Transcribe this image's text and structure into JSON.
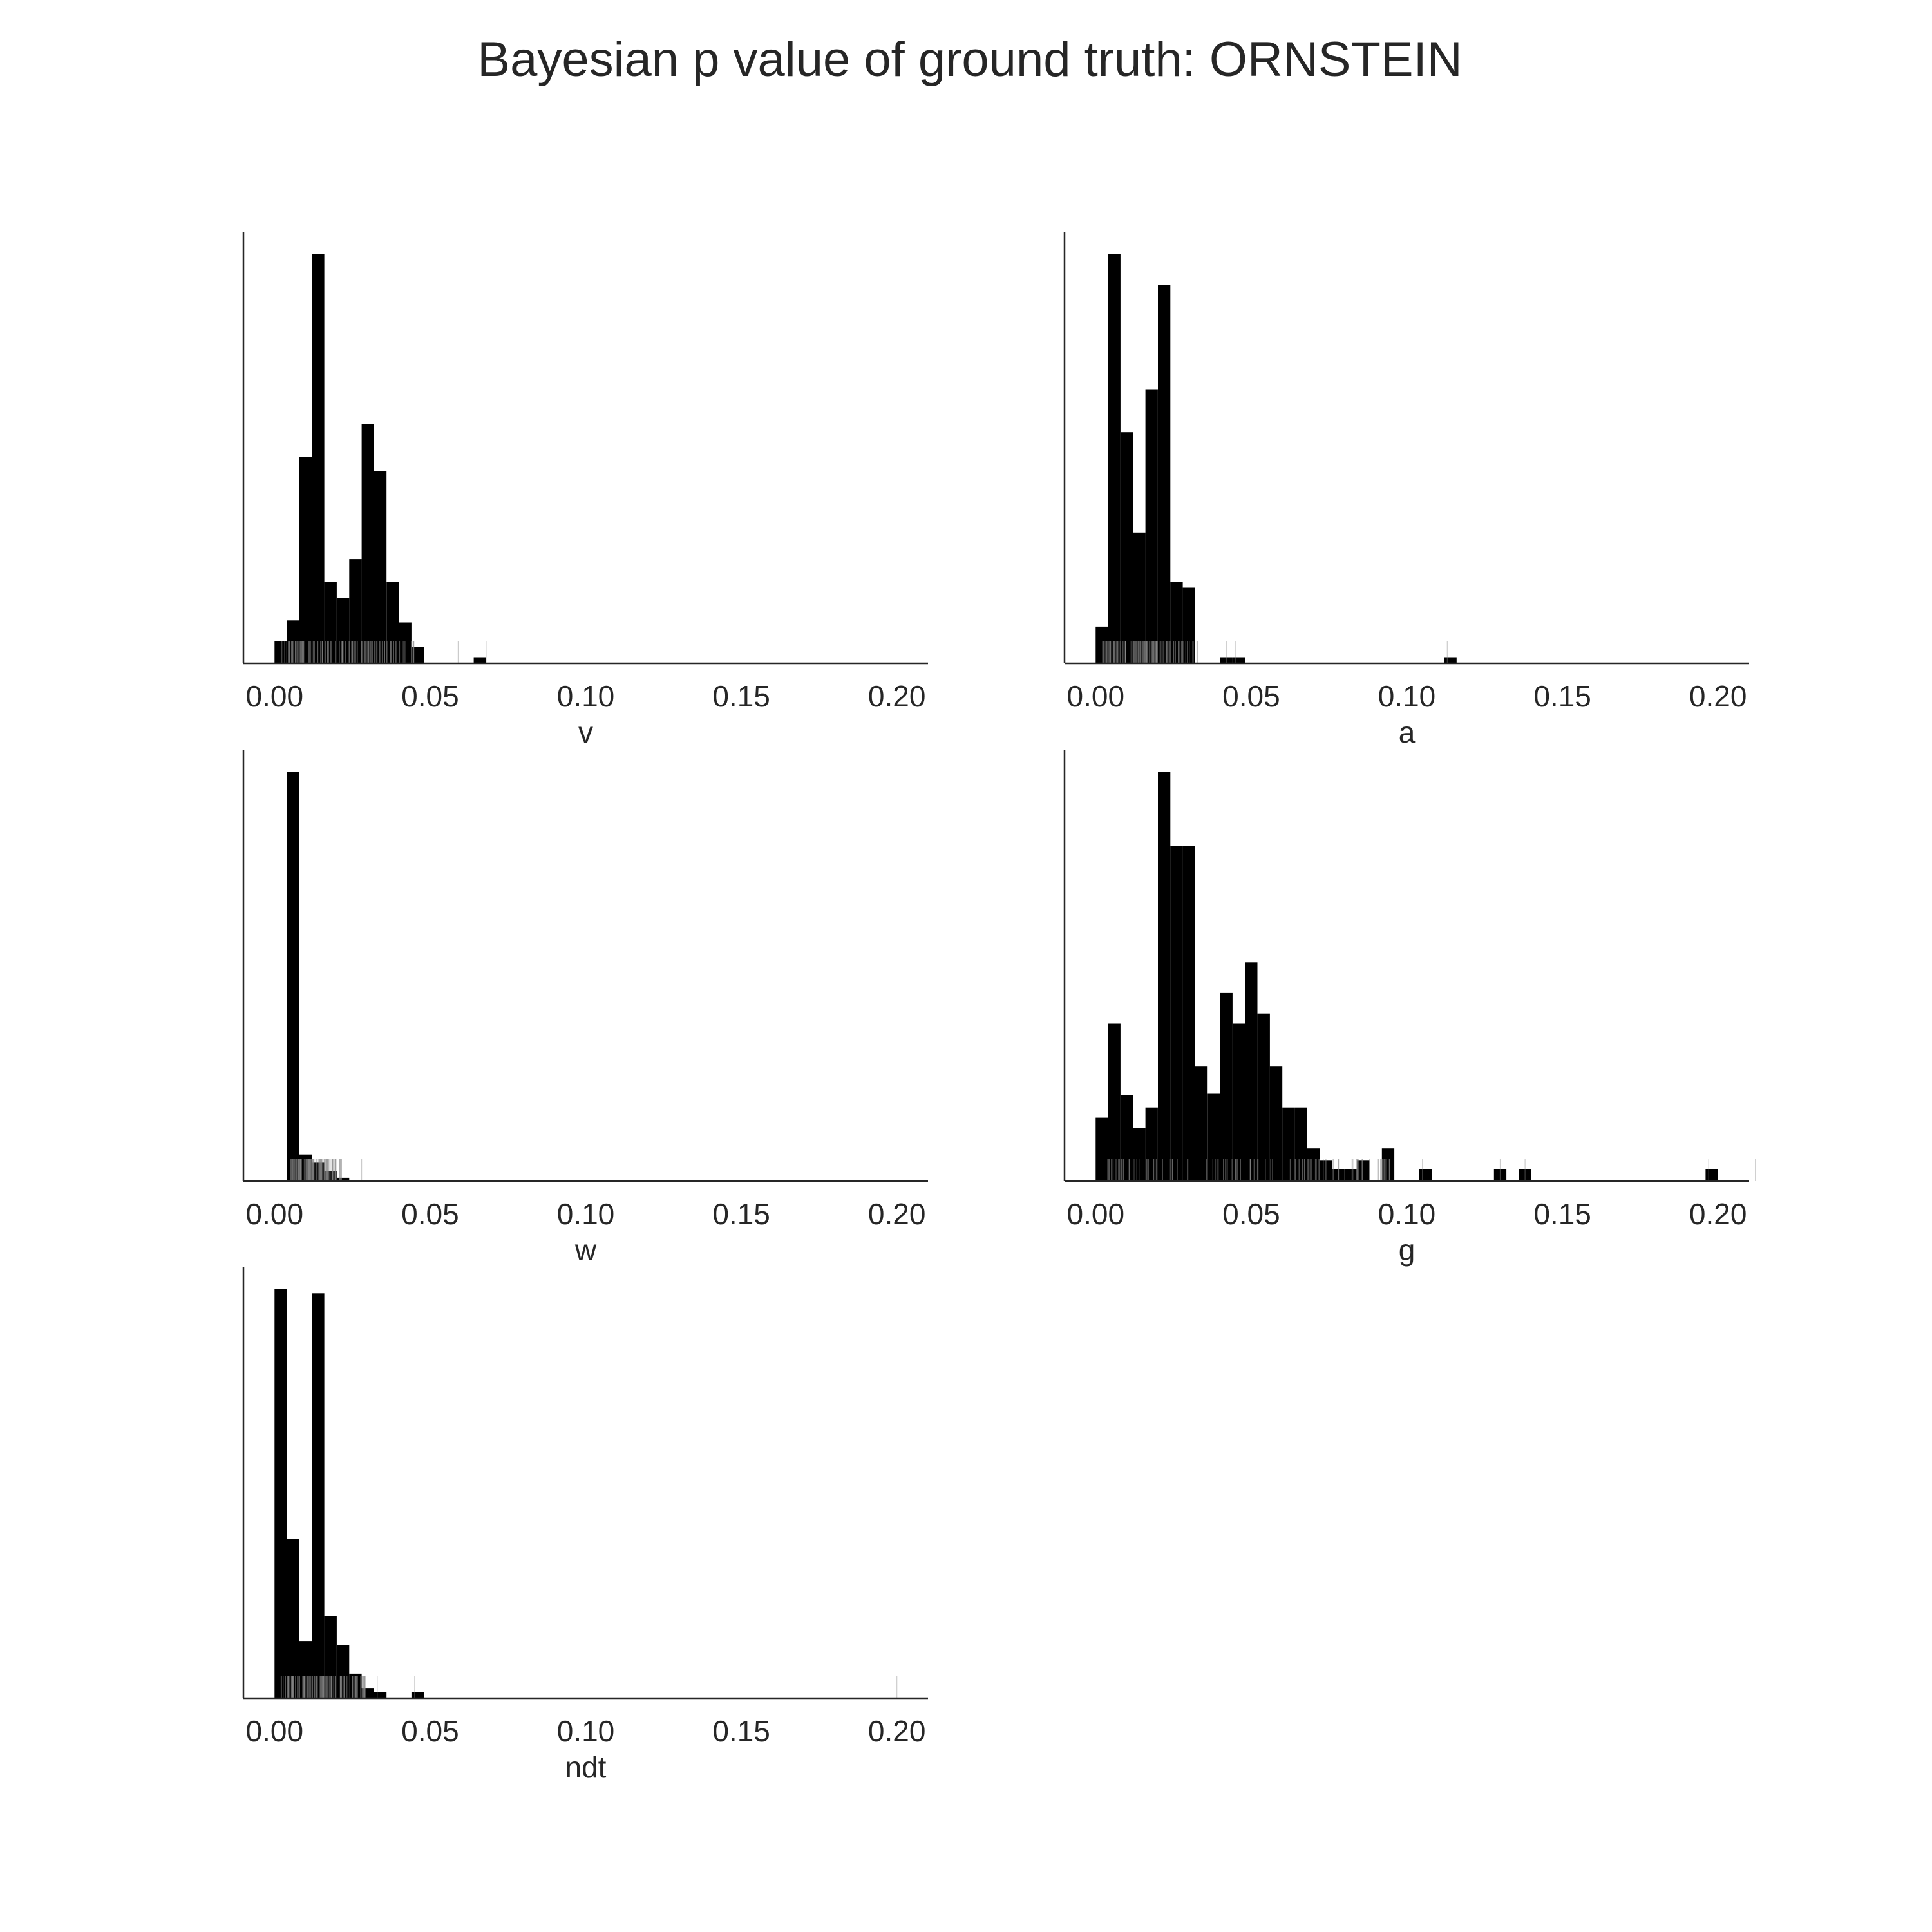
{
  "title": "Bayesian p value of ground truth: ORNSTEIN",
  "colors": {
    "bar": "#000000",
    "rug": "#8c8c8c",
    "axis": "#262626",
    "background": "#ffffff"
  },
  "chart_data": [
    {
      "type": "bar",
      "xlabel": "v",
      "xlim": [
        -0.01,
        0.21
      ],
      "xticks": [
        "0.00",
        "0.05",
        "0.10",
        "0.15",
        "0.20"
      ],
      "tick_values": [
        0,
        0.05,
        0.1,
        0.15,
        0.2
      ],
      "grid": false,
      "bin_width": 0.004,
      "bin_starts": [
        0.0,
        0.004,
        0.008,
        0.012,
        0.016,
        0.02,
        0.024,
        0.028,
        0.032,
        0.036,
        0.04,
        0.044,
        0.064
      ],
      "values": [
        0.055,
        0.105,
        0.505,
        1.0,
        0.2,
        0.16,
        0.255,
        0.585,
        0.47,
        0.2,
        0.1,
        0.04,
        0.015
      ],
      "rug": {
        "range": [
          0.002,
          0.045
        ],
        "extra": [
          0.059,
          0.068
        ]
      }
    },
    {
      "type": "bar",
      "xlabel": "a",
      "xlim": [
        -0.01,
        0.21
      ],
      "xticks": [
        "0.00",
        "0.05",
        "0.10",
        "0.15",
        "0.20"
      ],
      "tick_values": [
        0,
        0.05,
        0.1,
        0.15,
        0.2
      ],
      "grid": false,
      "bin_width": 0.004,
      "bin_starts": [
        0.0,
        0.004,
        0.008,
        0.012,
        0.016,
        0.02,
        0.024,
        0.028,
        0.04,
        0.044,
        0.112
      ],
      "values": [
        0.09,
        1.0,
        0.565,
        0.32,
        0.67,
        0.925,
        0.2,
        0.185,
        0.015,
        0.015,
        0.015
      ],
      "rug": {
        "range": [
          0.002,
          0.033
        ],
        "extra": [
          0.042,
          0.045,
          0.113
        ]
      }
    },
    {
      "type": "bar",
      "xlabel": "w",
      "xlim": [
        -0.01,
        0.21
      ],
      "xticks": [
        "0.00",
        "0.05",
        "0.10",
        "0.15",
        "0.20"
      ],
      "tick_values": [
        0,
        0.05,
        0.1,
        0.15,
        0.2
      ],
      "grid": false,
      "bin_width": 0.004,
      "bin_starts": [
        0.004,
        0.008,
        0.012,
        0.016,
        0.02
      ],
      "values": [
        1.0,
        0.065,
        0.045,
        0.025,
        0.008
      ],
      "rug": {
        "range": [
          0.005,
          0.022
        ],
        "extra": [
          0.028
        ]
      }
    },
    {
      "type": "bar",
      "xlabel": "g",
      "xlim": [
        -0.01,
        0.21
      ],
      "xticks": [
        "0.00",
        "0.05",
        "0.10",
        "0.15",
        "0.20"
      ],
      "tick_values": [
        0,
        0.05,
        0.1,
        0.15,
        0.2
      ],
      "grid": false,
      "bin_width": 0.004,
      "bin_starts": [
        0.0,
        0.004,
        0.008,
        0.012,
        0.016,
        0.02,
        0.024,
        0.028,
        0.032,
        0.036,
        0.04,
        0.044,
        0.048,
        0.052,
        0.056,
        0.06,
        0.064,
        0.068,
        0.072,
        0.076,
        0.08,
        0.084,
        0.092,
        0.104,
        0.128,
        0.136,
        0.196
      ],
      "values": [
        0.155,
        0.385,
        0.21,
        0.13,
        0.18,
        1.0,
        0.82,
        0.82,
        0.28,
        0.215,
        0.46,
        0.385,
        0.535,
        0.41,
        0.28,
        0.18,
        0.18,
        0.08,
        0.05,
        0.03,
        0.03,
        0.05,
        0.08,
        0.03,
        0.03,
        0.03,
        0.03
      ],
      "rug": {
        "range": [
          0.002,
          0.095
        ],
        "extra": [
          0.105,
          0.13,
          0.138,
          0.197,
          0.212
        ]
      }
    },
    {
      "type": "bar",
      "xlabel": "ndt",
      "xlim": [
        -0.01,
        0.21
      ],
      "xticks": [
        "0.00",
        "0.05",
        "0.10",
        "0.15",
        "0.20"
      ],
      "tick_values": [
        0,
        0.05,
        0.1,
        0.15,
        0.2
      ],
      "grid": false,
      "bin_width": 0.004,
      "bin_starts": [
        0.0,
        0.004,
        0.008,
        0.012,
        0.016,
        0.02,
        0.024,
        0.028,
        0.032,
        0.044
      ],
      "values": [
        1.0,
        0.39,
        0.14,
        0.99,
        0.2,
        0.13,
        0.06,
        0.025,
        0.015,
        0.015
      ],
      "rug": {
        "range": [
          0.002,
          0.03
        ],
        "extra": [
          0.033,
          0.045,
          0.2
        ]
      }
    }
  ]
}
